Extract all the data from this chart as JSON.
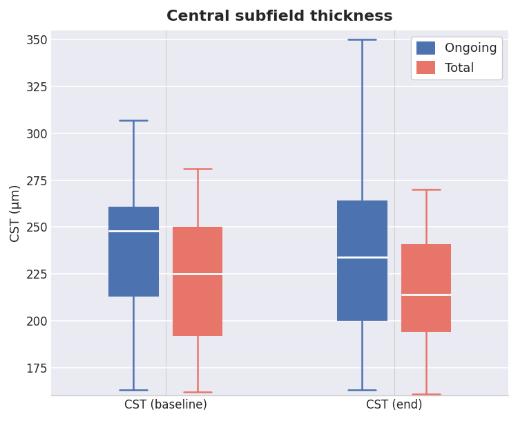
{
  "title": "Central subfield thickness",
  "ylabel": "CST (μm)",
  "xlim": [
    -0.5,
    1.5
  ],
  "ylim": [
    160,
    355
  ],
  "yticks": [
    175,
    200,
    225,
    250,
    275,
    300,
    325,
    350
  ],
  "xtick_labels": [
    "CST (baseline)",
    "CST (end)"
  ],
  "legend_labels": [
    "Ongoing",
    "Total"
  ],
  "blue_color": "#4C72B0",
  "red_color": "#E8756A",
  "box_width": 0.22,
  "groups": {
    "CST (baseline)": {
      "ongoing": {
        "whisker_low": 163,
        "q1": 213,
        "median": 248,
        "q3": 261,
        "whisker_high": 307
      },
      "total": {
        "whisker_low": 162,
        "q1": 192,
        "median": 225,
        "q3": 250,
        "whisker_high": 281
      }
    },
    "CST (end)": {
      "ongoing": {
        "whisker_low": 163,
        "q1": 200,
        "median": 234,
        "q3": 264,
        "whisker_high": 350
      },
      "total": {
        "whisker_low": 161,
        "q1": 194,
        "median": 214,
        "q3": 241,
        "whisker_high": 270
      }
    }
  },
  "group_positions": [
    0,
    1
  ],
  "offsets": [
    -0.14,
    0.14
  ],
  "bg_color": "#EAEAF2",
  "grid_color": "#ffffff",
  "title_fontsize": 16,
  "label_fontsize": 13,
  "tick_fontsize": 12
}
